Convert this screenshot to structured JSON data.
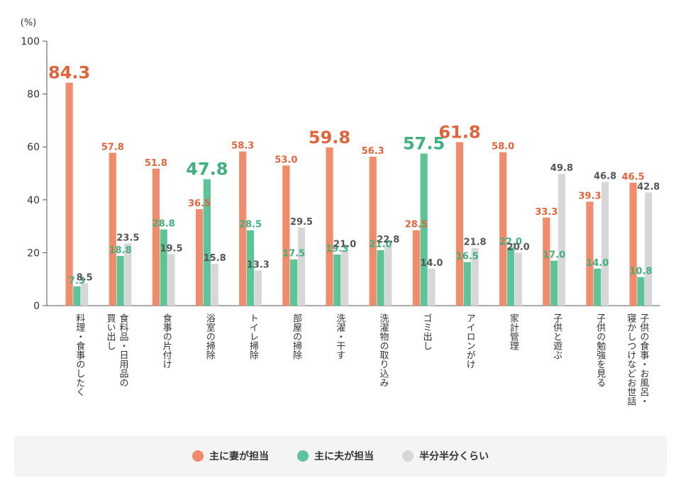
{
  "chart_data": {
    "type": "bar",
    "unit_label": "(%)",
    "ylim": [
      0,
      100
    ],
    "yticks": [
      0,
      20,
      40,
      60,
      80,
      100
    ],
    "categories": [
      [
        "料理・食事のしたく"
      ],
      [
        "食料品・日用品の",
        "買い出し"
      ],
      [
        "食事の片付け"
      ],
      [
        "浴室の掃除"
      ],
      [
        "トイレ掃除"
      ],
      [
        "部屋の掃除"
      ],
      [
        "洗濯・干す"
      ],
      [
        "洗濯物の取り込み"
      ],
      [
        "ゴミ出し"
      ],
      [
        "アイロンがけ"
      ],
      [
        "家計管理"
      ],
      [
        "子供と遊ぶ"
      ],
      [
        "子供の勉強を見る"
      ],
      [
        "子供の食事・お風呂・",
        "寝かしつけなどお世話"
      ]
    ],
    "series": [
      {
        "name": "主に妻が担当",
        "color": "#f08c6c",
        "label_color": "#e0643c",
        "values": [
          84.3,
          57.8,
          51.8,
          36.5,
          58.3,
          53.0,
          59.8,
          56.3,
          28.5,
          61.8,
          58.0,
          33.3,
          39.3,
          46.5
        ],
        "labels": [
          "84.3",
          "57.8",
          "51.8",
          "36.5",
          "58.3",
          "53.0",
          "59.8",
          "56.3",
          "28.5",
          "61.8",
          "58.0",
          "33.3",
          "39.3",
          "46.5"
        ]
      },
      {
        "name": "主に夫が担当",
        "color": "#5cc496",
        "label_color": "#3fb07e",
        "values": [
          7.3,
          18.8,
          28.8,
          47.8,
          28.5,
          17.5,
          19.3,
          21.0,
          57.5,
          16.5,
          22.0,
          17.0,
          14.0,
          10.8
        ],
        "labels": [
          "7.3",
          "18.8",
          "28.8",
          "47.8",
          "28.5",
          "17.5",
          "19.3",
          "21.0",
          "57.5",
          "16.5",
          "22.0",
          "17.0",
          "14.0",
          "10.8"
        ]
      },
      {
        "name": "半分半分くらい",
        "color": "#d7d7d7",
        "label_color": "#555555",
        "values": [
          8.5,
          23.5,
          19.5,
          15.8,
          13.3,
          29.5,
          21.0,
          22.8,
          14.0,
          21.8,
          20.0,
          49.8,
          46.8,
          42.8
        ],
        "labels": [
          "8.5",
          "23.5",
          "19.5",
          "15.8",
          "13.3",
          "29.5",
          "21.0",
          "22.8",
          "14.0",
          "21.8",
          "20.0",
          "49.8",
          "46.8",
          "42.8"
        ]
      }
    ],
    "legend_position": "bottom",
    "grid": false
  }
}
